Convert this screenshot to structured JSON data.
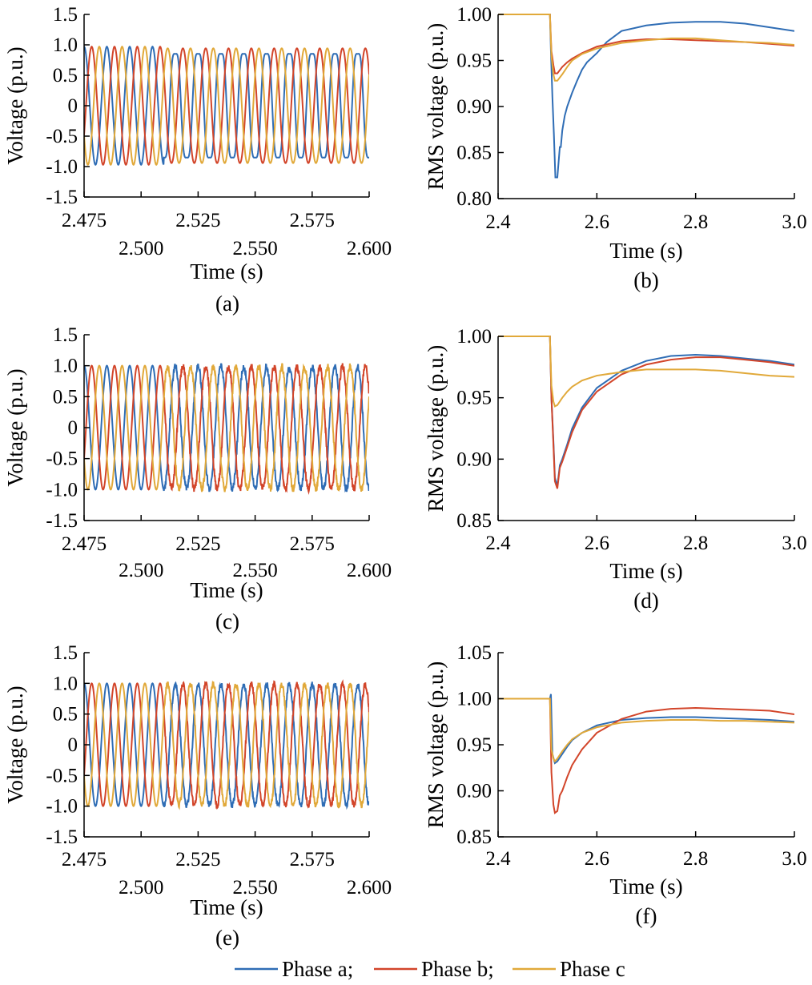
{
  "colors": {
    "phase_a": "#2f6db5",
    "phase_b": "#d2452a",
    "phase_c": "#e1a93a",
    "axis": "#000000"
  },
  "legend": [
    {
      "key": "phase_a",
      "label": "Phase a;"
    },
    {
      "key": "phase_b",
      "label": "Phase b;"
    },
    {
      "key": "phase_c",
      "label": "Phase c"
    }
  ],
  "chart_data": [
    {
      "id": "a",
      "type": "line",
      "caption": "(a)",
      "xlabel": "Time (s)",
      "ylabel": "Voltage (p.u.)",
      "xlim": [
        2.475,
        2.6
      ],
      "ylim": [
        -1.5,
        1.5
      ],
      "xticks_top": [
        "2.475",
        "2.525",
        "2.575"
      ],
      "xticks_top_values": [
        2.475,
        2.525,
        2.575
      ],
      "xticks_bottom": [
        "2.500",
        "2.550",
        "2.600"
      ],
      "xticks_bottom_values": [
        2.5,
        2.55,
        2.6
      ],
      "yticks": [
        "1.5",
        "1.0",
        "0.5",
        "0",
        "-0.5",
        "-1.0",
        "-1.5"
      ],
      "ytick_values": [
        1.5,
        1.0,
        0.5,
        0,
        -0.5,
        -1.0,
        -1.5
      ],
      "waveform": {
        "frequency_hz": 100,
        "amplitude": 0.97,
        "fault_time": 2.51,
        "noise_before": 0.0,
        "noise_after": 0.0,
        "distortion_a": 0.35,
        "distortion_b": 0.08,
        "distortion_c": 0.08
      },
      "series": [
        {
          "key": "phase_a",
          "phase_deg": 0
        },
        {
          "key": "phase_b",
          "phase_deg": -120
        },
        {
          "key": "phase_c",
          "phase_deg": 120
        }
      ]
    },
    {
      "id": "b",
      "type": "line",
      "caption": "(b)",
      "xlabel": "Time (s)",
      "ylabel": "RMS voltage (p.u.)",
      "xlim": [
        2.4,
        3.0
      ],
      "ylim": [
        0.8,
        1.0
      ],
      "xticks": [
        "2.4",
        "2.6",
        "2.8",
        "3.0"
      ],
      "xtick_values": [
        2.4,
        2.6,
        2.8,
        3.0
      ],
      "yticks": [
        "1.00",
        "0.95",
        "0.90",
        "0.85",
        "0.80"
      ],
      "ytick_values": [
        1.0,
        0.95,
        0.9,
        0.85,
        0.8
      ],
      "series": [
        {
          "key": "phase_a",
          "x": [
            2.4,
            2.505,
            2.507,
            2.51,
            2.513,
            2.516,
            2.52,
            2.525,
            2.527,
            2.53,
            2.535,
            2.54,
            2.55,
            2.56,
            2.57,
            2.58,
            2.6,
            2.62,
            2.65,
            2.7,
            2.75,
            2.8,
            2.85,
            2.9,
            2.95,
            3.0
          ],
          "y": [
            1.0,
            1.0,
            0.96,
            0.91,
            0.87,
            0.823,
            0.823,
            0.856,
            0.856,
            0.874,
            0.89,
            0.9,
            0.915,
            0.928,
            0.94,
            0.948,
            0.958,
            0.97,
            0.982,
            0.988,
            0.991,
            0.992,
            0.992,
            0.99,
            0.986,
            0.982
          ]
        },
        {
          "key": "phase_b",
          "x": [
            2.4,
            2.505,
            2.508,
            2.512,
            2.515,
            2.52,
            2.53,
            2.54,
            2.55,
            2.57,
            2.6,
            2.65,
            2.7,
            2.75,
            2.8,
            2.85,
            2.9,
            2.95,
            3.0
          ],
          "y": [
            1.0,
            1.0,
            0.96,
            0.945,
            0.936,
            0.936,
            0.943,
            0.948,
            0.952,
            0.958,
            0.965,
            0.971,
            0.973,
            0.973,
            0.972,
            0.971,
            0.97,
            0.968,
            0.966
          ]
        },
        {
          "key": "phase_c",
          "x": [
            2.4,
            2.505,
            2.508,
            2.512,
            2.515,
            2.52,
            2.53,
            2.54,
            2.55,
            2.57,
            2.6,
            2.65,
            2.7,
            2.75,
            2.8,
            2.85,
            2.9,
            2.95,
            3.0
          ],
          "y": [
            1.0,
            1.0,
            0.955,
            0.935,
            0.928,
            0.928,
            0.935,
            0.943,
            0.95,
            0.957,
            0.963,
            0.969,
            0.972,
            0.974,
            0.974,
            0.972,
            0.97,
            0.969,
            0.967
          ]
        }
      ]
    },
    {
      "id": "c",
      "type": "line",
      "caption": "(c)",
      "xlabel": "Time (s)",
      "ylabel": "Voltage (p.u.)",
      "xlim": [
        2.475,
        2.6
      ],
      "ylim": [
        -1.5,
        1.5
      ],
      "xticks_top": [
        "2.475",
        "2.525",
        "2.575"
      ],
      "xticks_top_values": [
        2.475,
        2.525,
        2.575
      ],
      "xticks_bottom": [
        "2.500",
        "2.550",
        "2.600"
      ],
      "xticks_bottom_values": [
        2.5,
        2.55,
        2.6
      ],
      "yticks": [
        "1.5",
        "1.0",
        "0.5",
        "0",
        "-0.5",
        "-1.0",
        "-1.5"
      ],
      "ytick_values": [
        1.5,
        1.0,
        0.5,
        0,
        -0.5,
        -1.0,
        -1.5
      ],
      "waveform": {
        "frequency_hz": 100,
        "amplitude": 1.0,
        "fault_time": 2.51,
        "noise_before": 0.0,
        "noise_after": 0.06,
        "distortion_a": 0.05,
        "distortion_b": 0.05,
        "distortion_c": 0.05
      },
      "series": [
        {
          "key": "phase_a",
          "phase_deg": 0
        },
        {
          "key": "phase_b",
          "phase_deg": -120
        },
        {
          "key": "phase_c",
          "phase_deg": 120
        }
      ]
    },
    {
      "id": "d",
      "type": "line",
      "caption": "(d)",
      "xlabel": "Time (s)",
      "ylabel": "RMS voltage (p.u.)",
      "xlim": [
        2.4,
        3.0
      ],
      "ylim": [
        0.85,
        1.0
      ],
      "xticks": [
        "2.4",
        "2.6",
        "2.8",
        "3.0"
      ],
      "xtick_values": [
        2.4,
        2.6,
        2.8,
        3.0
      ],
      "yticks": [
        "1.00",
        "0.95",
        "0.90",
        "0.85"
      ],
      "ytick_values": [
        1.0,
        0.95,
        0.9,
        0.85
      ],
      "series": [
        {
          "key": "phase_a",
          "x": [
            2.4,
            2.505,
            2.508,
            2.512,
            2.515,
            2.52,
            2.525,
            2.53,
            2.54,
            2.55,
            2.57,
            2.6,
            2.65,
            2.7,
            2.75,
            2.8,
            2.85,
            2.9,
            2.95,
            3.0
          ],
          "y": [
            1.0,
            1.0,
            0.95,
            0.915,
            0.885,
            0.878,
            0.895,
            0.9,
            0.912,
            0.925,
            0.942,
            0.958,
            0.972,
            0.98,
            0.984,
            0.985,
            0.984,
            0.982,
            0.98,
            0.977
          ]
        },
        {
          "key": "phase_b",
          "x": [
            2.4,
            2.505,
            2.508,
            2.512,
            2.515,
            2.52,
            2.525,
            2.53,
            2.54,
            2.55,
            2.57,
            2.6,
            2.65,
            2.7,
            2.75,
            2.8,
            2.85,
            2.9,
            2.95,
            3.0
          ],
          "y": [
            1.0,
            1.0,
            0.95,
            0.912,
            0.882,
            0.876,
            0.893,
            0.898,
            0.91,
            0.922,
            0.94,
            0.955,
            0.969,
            0.977,
            0.981,
            0.983,
            0.983,
            0.981,
            0.979,
            0.976
          ]
        },
        {
          "key": "phase_c",
          "x": [
            2.4,
            2.505,
            2.508,
            2.512,
            2.515,
            2.52,
            2.53,
            2.54,
            2.55,
            2.57,
            2.6,
            2.65,
            2.7,
            2.75,
            2.8,
            2.85,
            2.9,
            2.95,
            3.0
          ],
          "y": [
            1.0,
            1.0,
            0.96,
            0.947,
            0.943,
            0.944,
            0.95,
            0.955,
            0.959,
            0.964,
            0.968,
            0.971,
            0.973,
            0.973,
            0.973,
            0.972,
            0.97,
            0.968,
            0.967
          ]
        }
      ]
    },
    {
      "id": "e",
      "type": "line",
      "caption": "(e)",
      "xlabel": "Time (s)",
      "ylabel": "Voltage (p.u.)",
      "xlim": [
        2.475,
        2.6
      ],
      "ylim": [
        -1.5,
        1.5
      ],
      "xticks_top": [
        "2.475",
        "2.525",
        "2.575"
      ],
      "xticks_top_values": [
        2.475,
        2.525,
        2.575
      ],
      "xticks_bottom": [
        "2.500",
        "2.550",
        "2.600"
      ],
      "xticks_bottom_values": [
        2.5,
        2.55,
        2.6
      ],
      "yticks": [
        "1.5",
        "1.0",
        "0.5",
        "0",
        "-0.5",
        "-1.0",
        "-1.5"
      ],
      "ytick_values": [
        1.5,
        1.0,
        0.5,
        0,
        -0.5,
        -1.0,
        -1.5
      ],
      "waveform": {
        "frequency_hz": 100,
        "amplitude": 1.0,
        "fault_time": 2.51,
        "noise_before": 0.0,
        "noise_after": 0.05,
        "distortion_a": 0.05,
        "distortion_b": 0.05,
        "distortion_c": 0.05
      },
      "series": [
        {
          "key": "phase_a",
          "phase_deg": 0
        },
        {
          "key": "phase_b",
          "phase_deg": -120
        },
        {
          "key": "phase_c",
          "phase_deg": 120
        }
      ]
    },
    {
      "id": "f",
      "type": "line",
      "caption": "(f)",
      "xlabel": "Time (s)",
      "ylabel": "RMS voltage (p.u.)",
      "xlim": [
        2.4,
        3.0
      ],
      "ylim": [
        0.85,
        1.05
      ],
      "xticks": [
        "2.4",
        "2.6",
        "2.8",
        "3.0"
      ],
      "xtick_values": [
        2.4,
        2.6,
        2.8,
        3.0
      ],
      "yticks": [
        "1.05",
        "1.00",
        "0.95",
        "0.90",
        "0.85"
      ],
      "ytick_values": [
        1.05,
        1.0,
        0.95,
        0.9,
        0.85
      ],
      "series": [
        {
          "key": "phase_a",
          "x": [
            2.4,
            2.505,
            2.507,
            2.51,
            2.515,
            2.52,
            2.53,
            2.54,
            2.55,
            2.57,
            2.6,
            2.65,
            2.7,
            2.75,
            2.8,
            2.85,
            2.9,
            2.95,
            3.0
          ],
          "y": [
            1.0,
            1.0,
            1.005,
            0.94,
            0.93,
            0.932,
            0.94,
            0.948,
            0.955,
            0.963,
            0.971,
            0.977,
            0.979,
            0.98,
            0.98,
            0.979,
            0.978,
            0.977,
            0.975
          ]
        },
        {
          "key": "phase_b",
          "x": [
            2.4,
            2.505,
            2.508,
            2.512,
            2.515,
            2.52,
            2.525,
            2.53,
            2.54,
            2.55,
            2.57,
            2.6,
            2.65,
            2.7,
            2.75,
            2.8,
            2.85,
            2.9,
            2.95,
            3.0
          ],
          "y": [
            1.0,
            1.0,
            0.92,
            0.885,
            0.876,
            0.878,
            0.895,
            0.9,
            0.915,
            0.928,
            0.945,
            0.963,
            0.978,
            0.986,
            0.989,
            0.99,
            0.989,
            0.988,
            0.987,
            0.983
          ]
        },
        {
          "key": "phase_c",
          "x": [
            2.4,
            2.505,
            2.508,
            2.512,
            2.515,
            2.52,
            2.53,
            2.54,
            2.55,
            2.57,
            2.6,
            2.65,
            2.7,
            2.75,
            2.8,
            2.85,
            2.9,
            2.95,
            3.0
          ],
          "y": [
            1.0,
            1.0,
            0.945,
            0.935,
            0.932,
            0.935,
            0.943,
            0.95,
            0.956,
            0.963,
            0.969,
            0.974,
            0.976,
            0.977,
            0.977,
            0.976,
            0.976,
            0.975,
            0.974
          ]
        }
      ]
    }
  ]
}
